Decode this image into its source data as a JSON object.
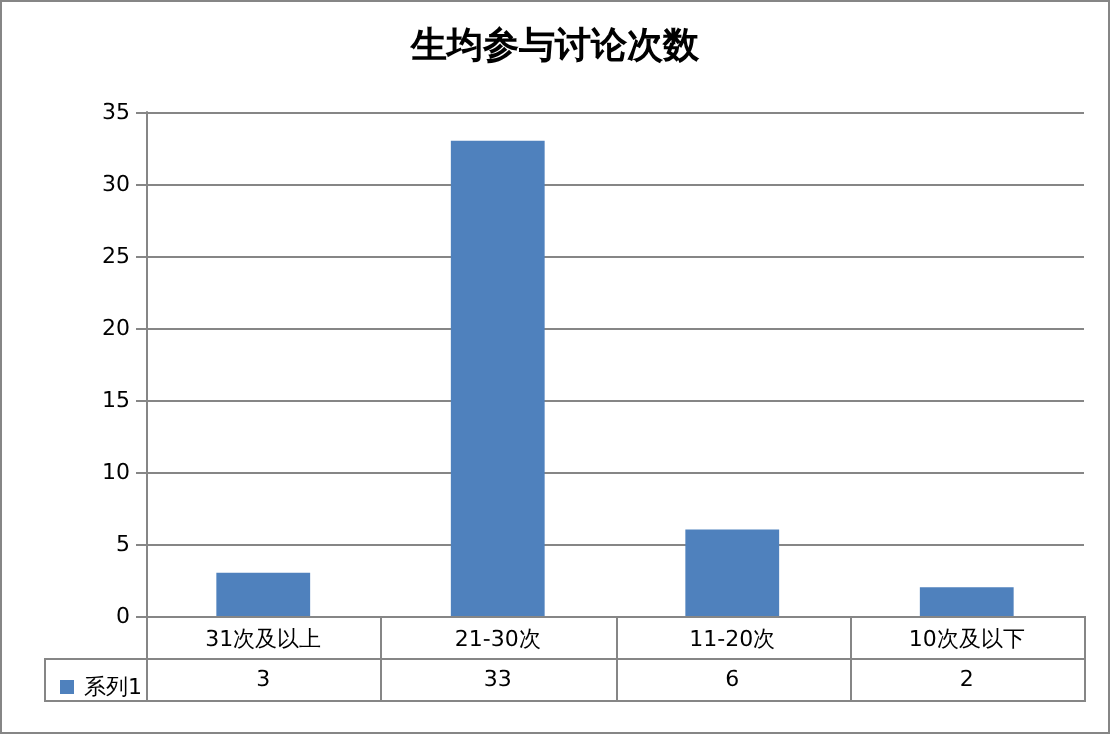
{
  "chart_data": {
    "type": "bar",
    "title": "生均参与讨论次数",
    "categories": [
      "31次及以上",
      "21-30次",
      "11-20次",
      "10次及以下"
    ],
    "series": [
      {
        "name": "系列1",
        "color": "#4f81bd",
        "values": [
          3,
          33,
          6,
          2
        ]
      }
    ],
    "ylim": [
      0,
      35
    ],
    "yticks": [
      0,
      5,
      10,
      15,
      20,
      25,
      30,
      35
    ],
    "grid": "y",
    "data_labels": true,
    "legend": "bottom left"
  }
}
